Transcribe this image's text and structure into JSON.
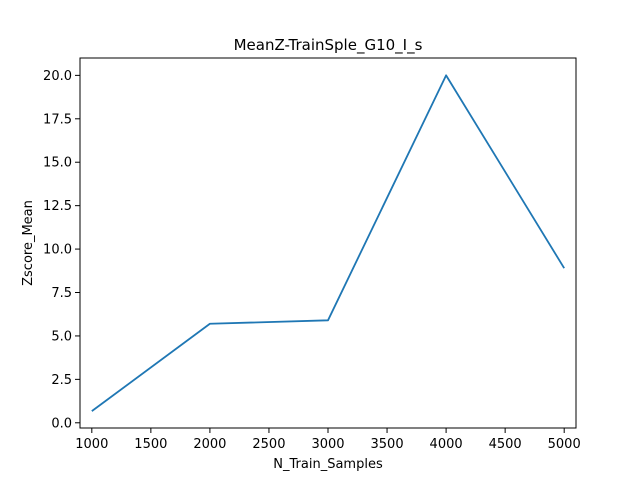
{
  "chart_data": {
    "type": "line",
    "title": "MeanZ-TrainSple_G10_I_s",
    "xlabel": "N_Train_Samples",
    "ylabel": "Zscore_Mean",
    "x": [
      1000,
      2000,
      3000,
      4000,
      5000
    ],
    "series": [
      {
        "values": [
          0.67,
          5.7,
          5.9,
          20.0,
          8.9
        ]
      }
    ],
    "xlim": [
      900,
      5100
    ],
    "ylim": [
      -0.3,
      21.0
    ],
    "xticks": [
      1000,
      1500,
      2000,
      2500,
      3000,
      3500,
      4000,
      4500,
      5000
    ],
    "yticks": [
      0.0,
      2.5,
      5.0,
      7.5,
      10.0,
      12.5,
      15.0,
      17.5,
      20.0
    ],
    "xtick_labels": [
      "1000",
      "1500",
      "2000",
      "2500",
      "3000",
      "3500",
      "4000",
      "4500",
      "5000"
    ],
    "ytick_labels": [
      "0.0",
      "2.5",
      "5.0",
      "7.5",
      "10.0",
      "12.5",
      "15.0",
      "17.5",
      "20.0"
    ],
    "line_color": "#1f77b4",
    "grid": false,
    "legend": "none"
  }
}
